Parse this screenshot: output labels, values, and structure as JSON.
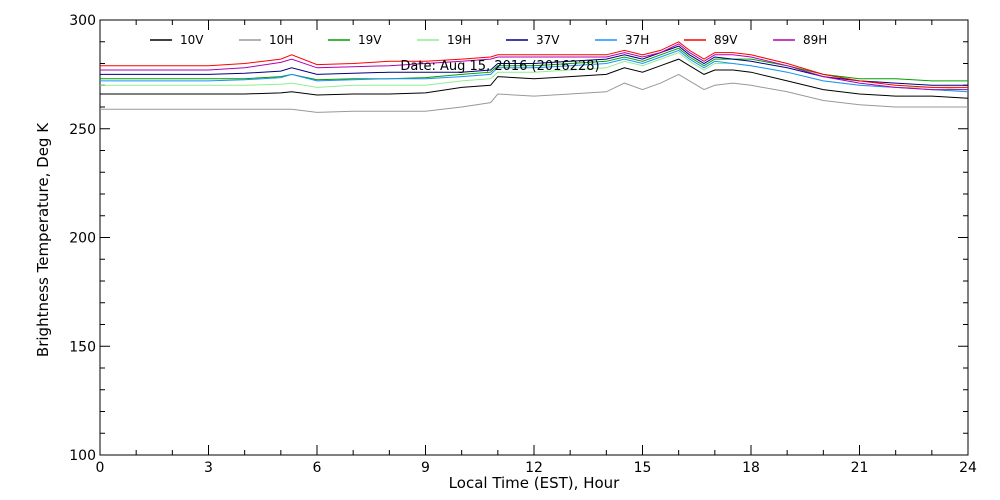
{
  "chart_data": {
    "type": "line",
    "title": "Date: Aug 15, 2016 (2016228)",
    "xlabel": "Local Time (EST), Hour",
    "ylabel": "Brightness Temperature, Deg K",
    "xlim": [
      0,
      24
    ],
    "ylim": [
      100,
      300
    ],
    "xticks": [
      0,
      3,
      6,
      9,
      12,
      15,
      18,
      21,
      24
    ],
    "yticks": [
      100,
      150,
      200,
      250,
      300
    ],
    "grid": false,
    "legend_position": "top",
    "x": [
      0,
      1,
      2,
      3,
      4,
      5,
      5.3,
      6,
      7,
      8,
      9,
      10,
      10.8,
      11,
      12,
      13,
      14,
      14.5,
      15,
      15.5,
      16,
      16.3,
      16.7,
      17,
      17.5,
      18,
      19,
      20,
      21,
      22,
      23,
      24
    ],
    "series": [
      {
        "name": "10V",
        "color": "#000000",
        "values": [
          266,
          266,
          266,
          266,
          266,
          266.5,
          267,
          265.5,
          266,
          266,
          266.5,
          269,
          270,
          274,
          273,
          274,
          275,
          278,
          276,
          279,
          282,
          279,
          275,
          277,
          277,
          276,
          272,
          268,
          266,
          265,
          265,
          264
        ]
      },
      {
        "name": "10H",
        "color": "#999999",
        "values": [
          259,
          259,
          259,
          259,
          259,
          259,
          259,
          257.5,
          258,
          258,
          258,
          260,
          262,
          266,
          265,
          266,
          267,
          271,
          268,
          271,
          275,
          272,
          268,
          270,
          271,
          270,
          267,
          263,
          261,
          260,
          260,
          260
        ]
      },
      {
        "name": "19V",
        "color": "#00a000",
        "values": [
          273,
          273,
          273,
          273,
          273,
          274,
          275,
          272.5,
          273,
          273,
          273.5,
          275,
          276,
          279,
          279,
          280,
          281,
          283,
          281,
          284,
          287,
          283,
          279,
          282,
          282,
          282,
          279,
          275,
          273,
          273,
          272,
          272
        ]
      },
      {
        "name": "19H",
        "color": "#90ee90",
        "values": [
          270,
          270,
          270,
          270,
          270,
          270.5,
          271,
          269,
          270,
          270,
          270,
          272,
          273,
          276,
          276,
          277,
          278,
          281,
          279,
          282,
          285,
          281,
          277,
          280,
          280,
          279,
          276,
          272,
          270,
          269,
          269,
          268
        ]
      },
      {
        "name": "37V",
        "color": "#000080",
        "values": [
          275,
          275,
          275,
          275,
          275.5,
          276.5,
          278,
          275,
          275.5,
          276,
          276,
          276,
          277,
          280,
          280,
          281,
          282,
          284,
          282,
          285,
          288,
          284,
          280,
          283,
          282,
          281,
          278,
          274,
          272,
          271,
          270,
          270
        ]
      },
      {
        "name": "37H",
        "color": "#1e90ff",
        "values": [
          272,
          272,
          272,
          272,
          272.5,
          273.5,
          275,
          272,
          272.5,
          273,
          273,
          274,
          275,
          278,
          278,
          279,
          280,
          282,
          280,
          283,
          286,
          282,
          278,
          281,
          280,
          279,
          276,
          272,
          270,
          269,
          268,
          267
        ]
      },
      {
        "name": "89V",
        "color": "#ff0000",
        "values": [
          279,
          279,
          279,
          279,
          280,
          282,
          284,
          279.5,
          280,
          281,
          281,
          282,
          283,
          284,
          284,
          284,
          284,
          286,
          284,
          286,
          290,
          286,
          282,
          285,
          285,
          284,
          280,
          275,
          272,
          270,
          269,
          269
        ]
      },
      {
        "name": "89H",
        "color": "#b000b0",
        "values": [
          277,
          277,
          277,
          277,
          278,
          280.5,
          282,
          278,
          278.5,
          279,
          280,
          281,
          282,
          283,
          283,
          283,
          283,
          285,
          283,
          285,
          289,
          285,
          281,
          284,
          284,
          283,
          279,
          274,
          271,
          269,
          268,
          268
        ]
      }
    ]
  }
}
